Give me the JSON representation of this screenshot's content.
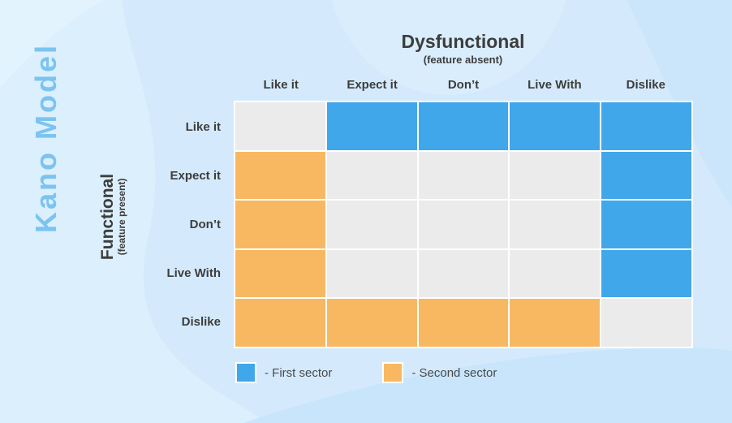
{
  "poster": {
    "vertical_title": "Kano Model"
  },
  "axes": {
    "top": {
      "title": "Dysfunctional",
      "subtitle": "(feature absent)"
    },
    "left": {
      "title": "Functional",
      "subtitle": "(feature present)"
    }
  },
  "matrix": {
    "columns": [
      "Like it",
      "Expect it",
      "Don’t",
      "Live With",
      "Dislike"
    ],
    "rows": [
      "Like it",
      "Expect it",
      "Don’t",
      "Live With",
      "Dislike"
    ],
    "cells": [
      [
        "gray",
        "blue",
        "blue",
        "blue",
        "blue"
      ],
      [
        "orange",
        "gray",
        "gray",
        "gray",
        "blue"
      ],
      [
        "orange",
        "gray",
        "gray",
        "gray",
        "blue"
      ],
      [
        "orange",
        "gray",
        "gray",
        "gray",
        "blue"
      ],
      [
        "orange",
        "orange",
        "orange",
        "orange",
        "gray"
      ]
    ]
  },
  "legend": {
    "items": [
      {
        "key": "blue",
        "label": "- First sector"
      },
      {
        "key": "orange",
        "label": "- Second sector"
      }
    ]
  },
  "colors": {
    "blue": "#41a7eb",
    "orange": "#f8b862",
    "gray": "#ebebeb",
    "heading_text": "#3d3d3d",
    "vertical_title_text": "#7cc4f0"
  }
}
